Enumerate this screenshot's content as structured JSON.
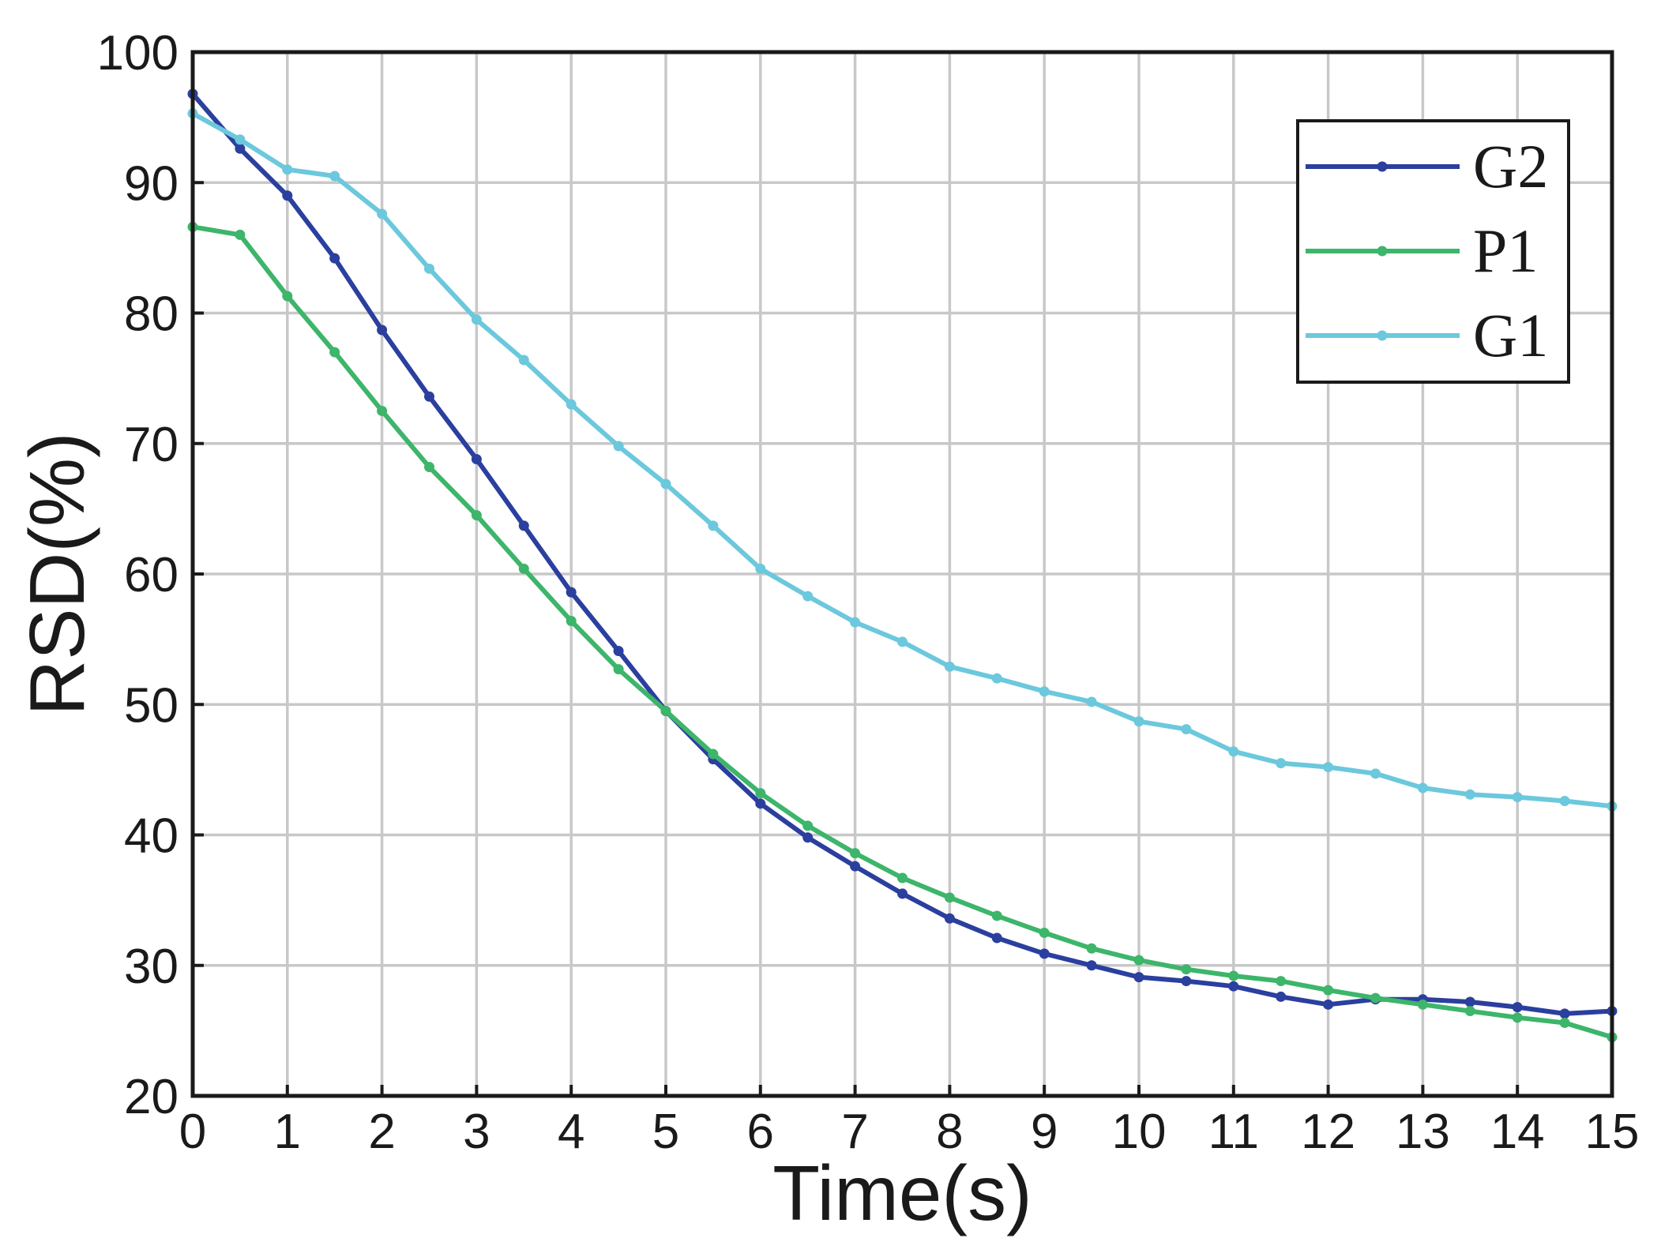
{
  "chart_data": {
    "type": "line",
    "xlabel": "Time(s)",
    "ylabel": "RSD(%)",
    "xlim": [
      0,
      15
    ],
    "ylim": [
      20,
      100
    ],
    "xticks": [
      0,
      1,
      2,
      3,
      4,
      5,
      6,
      7,
      8,
      9,
      10,
      11,
      12,
      13,
      14,
      15
    ],
    "yticks": [
      20,
      30,
      40,
      50,
      60,
      70,
      80,
      90,
      100
    ],
    "grid": true,
    "legend_position": "top-right",
    "x": [
      0,
      0.5,
      1,
      1.5,
      2,
      2.5,
      3,
      3.5,
      4,
      4.5,
      5,
      5.5,
      6,
      6.5,
      7,
      7.5,
      8,
      8.5,
      9,
      9.5,
      10,
      10.5,
      11,
      11.5,
      12,
      12.5,
      13,
      13.5,
      14,
      14.5,
      15
    ],
    "series": [
      {
        "name": "G2",
        "color": "#2b3f9e",
        "values": [
          96.8,
          92.6,
          89.0,
          84.2,
          78.7,
          73.6,
          68.8,
          63.7,
          58.6,
          54.1,
          49.5,
          45.8,
          42.4,
          39.8,
          37.6,
          35.5,
          33.6,
          32.1,
          30.9,
          30.0,
          29.1,
          28.8,
          28.4,
          27.6,
          27.0,
          27.4,
          27.4,
          27.2,
          26.8,
          26.3,
          26.5
        ]
      },
      {
        "name": "P1",
        "color": "#3db56a",
        "values": [
          86.6,
          86.0,
          81.3,
          77.0,
          72.5,
          68.2,
          64.5,
          60.4,
          56.4,
          52.7,
          49.5,
          46.2,
          43.2,
          40.7,
          38.6,
          36.7,
          35.2,
          33.8,
          32.5,
          31.3,
          30.4,
          29.7,
          29.2,
          28.8,
          28.1,
          27.5,
          27.0,
          26.5,
          26.0,
          25.6,
          24.5
        ]
      },
      {
        "name": "G1",
        "color": "#6cc8dc",
        "values": [
          95.3,
          93.3,
          91.0,
          90.5,
          87.6,
          83.4,
          79.5,
          76.4,
          73.0,
          69.8,
          66.9,
          63.7,
          60.4,
          58.3,
          56.3,
          54.8,
          52.9,
          52.0,
          51.0,
          50.2,
          48.7,
          48.1,
          46.4,
          45.5,
          45.2,
          44.7,
          43.6,
          43.1,
          42.9,
          42.6,
          42.2
        ]
      }
    ]
  }
}
